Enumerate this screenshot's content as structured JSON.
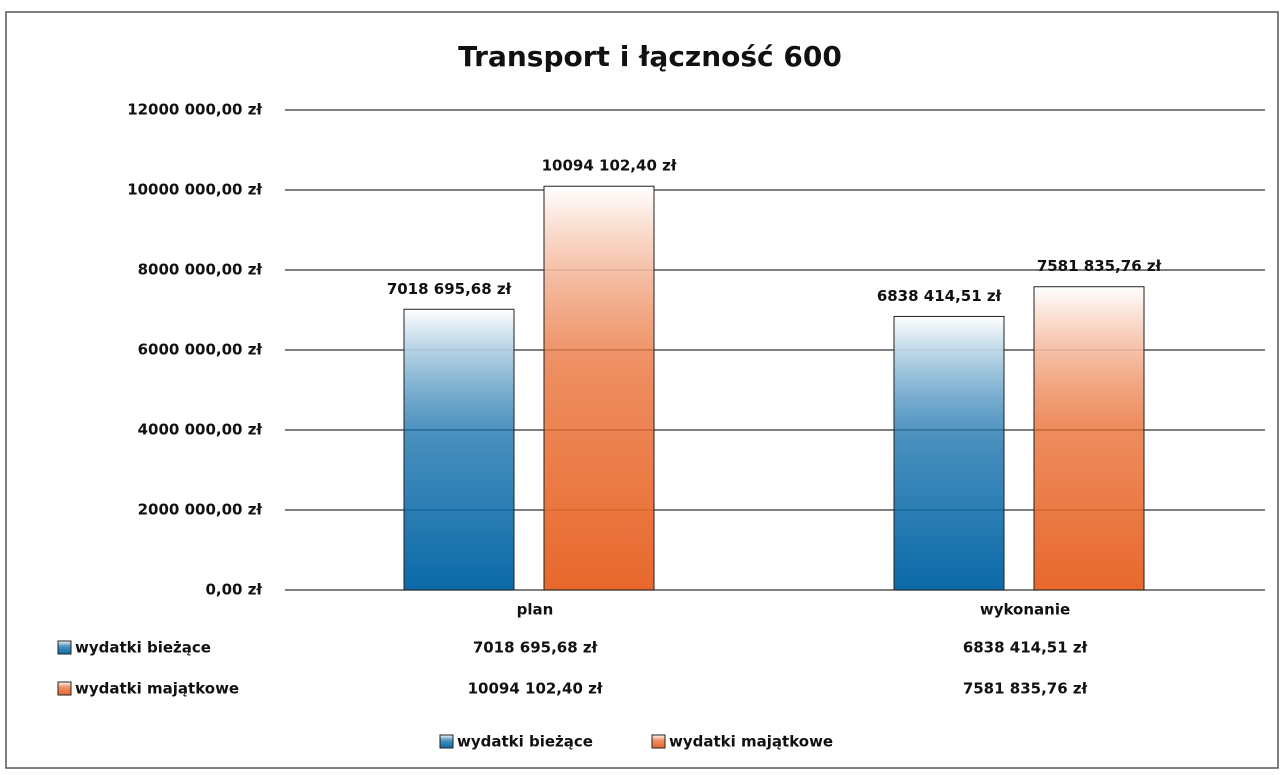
{
  "chart_data": {
    "type": "bar",
    "title": "Transport i łączność 600",
    "categories": [
      "plan",
      "wykonanie"
    ],
    "series": [
      {
        "name": "wydatki bieżące",
        "color": "#0b6aa8",
        "values": [
          7018695.68,
          6838414.51
        ],
        "value_labels": [
          "7018 695,68 zł",
          "6838 414,51 zł"
        ]
      },
      {
        "name": "wydatki majątkowe",
        "color": "#e8682c",
        "values": [
          10094102.4,
          7581835.76
        ],
        "value_labels": [
          "10094 102,40 zł",
          "7581 835,76 zł"
        ]
      }
    ],
    "ylim": [
      0,
      12000000
    ],
    "yticks": [
      {
        "value": 0,
        "label": "0,00 zł"
      },
      {
        "value": 2000000,
        "label": "2000 000,00 zł"
      },
      {
        "value": 4000000,
        "label": "4000 000,00 zł"
      },
      {
        "value": 6000000,
        "label": "6000 000,00 zł"
      },
      {
        "value": 8000000,
        "label": "8000 000,00 zł"
      },
      {
        "value": 10000000,
        "label": "10000 000,00 zł"
      },
      {
        "value": 12000000,
        "label": "12000 000,00 zł"
      }
    ],
    "grid": true,
    "legend": "bottom"
  }
}
